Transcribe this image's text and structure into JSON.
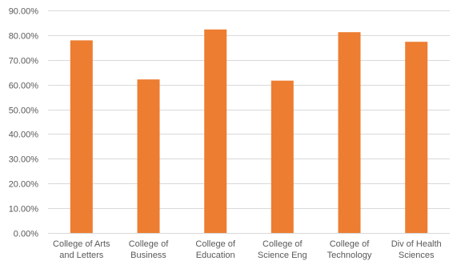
{
  "chart_data": {
    "type": "bar",
    "categories": [
      [
        "College of Arts",
        "and Letters"
      ],
      [
        "College of",
        "Business"
      ],
      [
        "College of",
        "Education"
      ],
      [
        "College of",
        "Science Eng"
      ],
      [
        "College of",
        "Technology"
      ],
      [
        "Div of Health",
        "Sciences"
      ]
    ],
    "values": [
      0.779,
      0.621,
      0.823,
      0.616,
      0.812,
      0.773
    ],
    "ylim": [
      0,
      0.9
    ],
    "y_ticks": [
      "0.00%",
      "10.00%",
      "20.00%",
      "30.00%",
      "40.00%",
      "50.00%",
      "60.00%",
      "70.00%",
      "80.00%",
      "90.00%"
    ],
    "title": "",
    "xlabel": "",
    "ylabel": "",
    "grid": true,
    "bar_color": "#ED7D31",
    "grid_color": "#D9D9D9",
    "text_color": "#595959"
  }
}
